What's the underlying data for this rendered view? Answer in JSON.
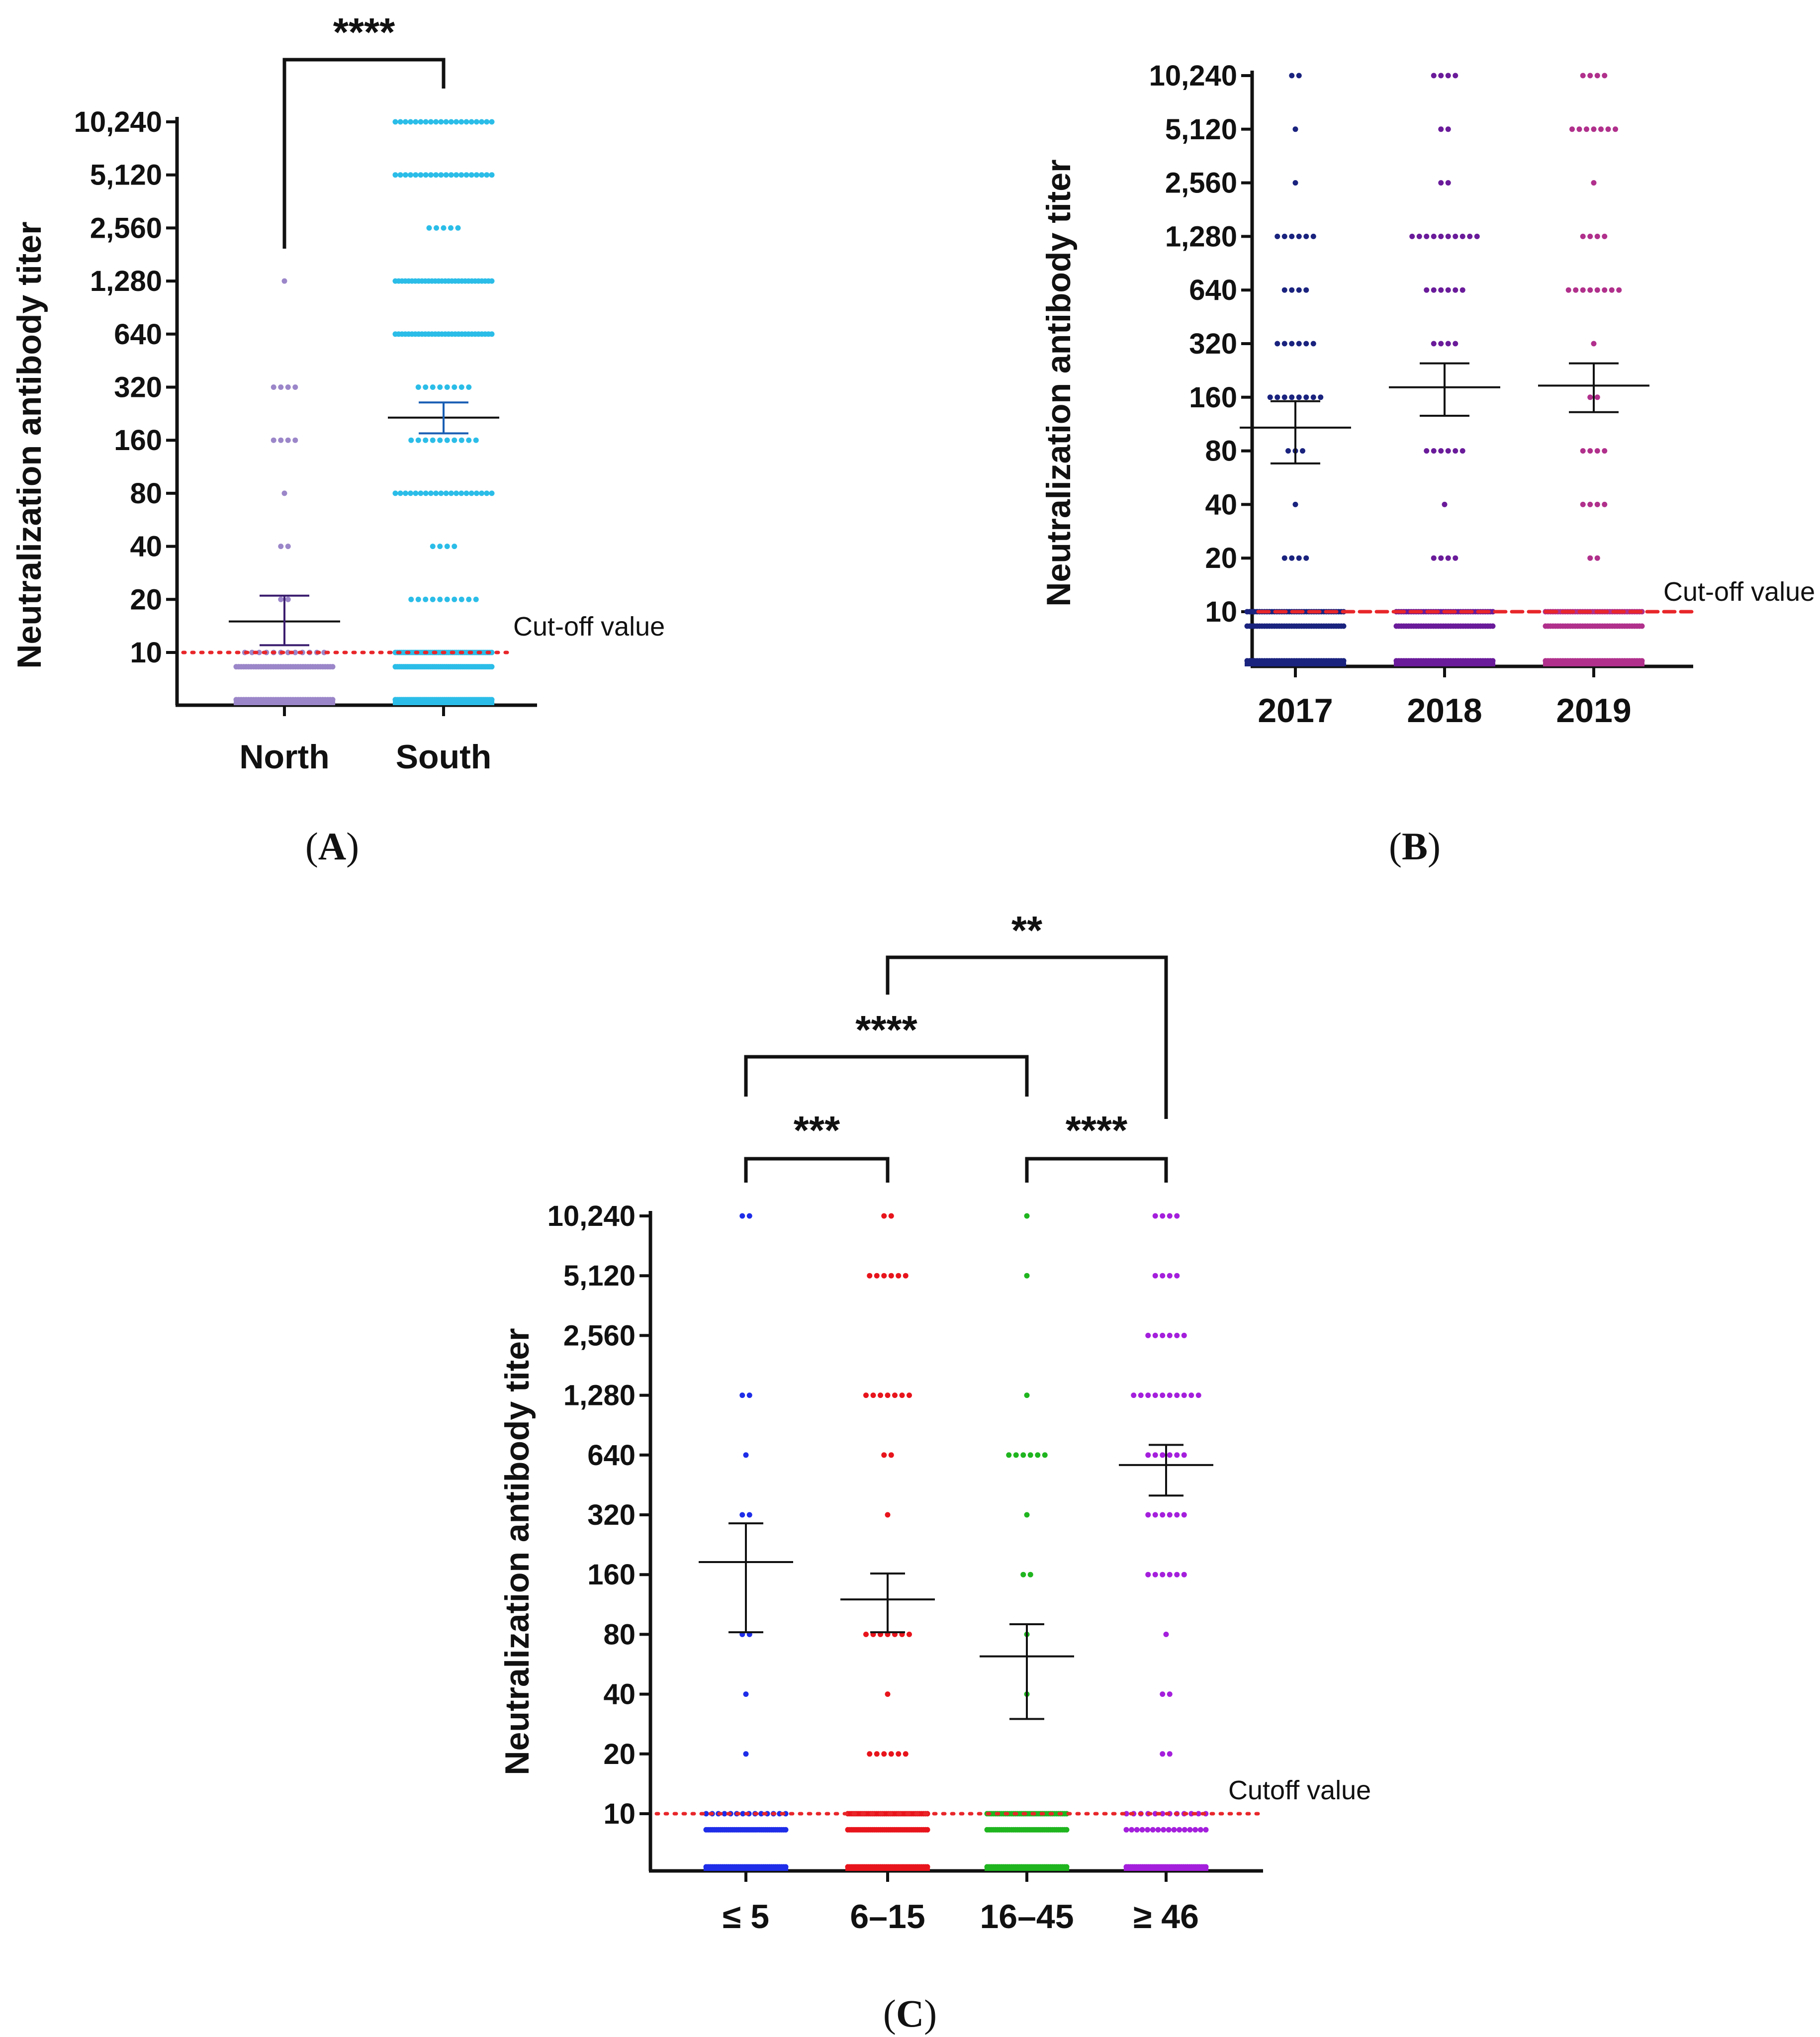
{
  "chart_data": [
    {
      "id": "A",
      "type": "scatter",
      "subtype": "dot-plot with mean ± SEM",
      "panel_label": "A",
      "ylabel": "Neutralization antibody titer",
      "yscale": "log2",
      "yticks": [
        "10",
        "20",
        "40",
        "80",
        "160",
        "320",
        "640",
        "1,280",
        "2,560",
        "5,120",
        "10,240"
      ],
      "ytick_values": [
        10,
        20,
        40,
        80,
        160,
        320,
        640,
        1280,
        2560,
        5120,
        10240
      ],
      "categories": [
        "North",
        "South"
      ],
      "cutoff": {
        "value": 10,
        "label": "Cut-off value",
        "color": "#e8262a",
        "style": "dotted"
      },
      "series": [
        {
          "name": "North",
          "color": "#9b86c9",
          "mean": 15,
          "sem_low": 11,
          "sem_high": 21,
          "points": [
            {
              "y": 1280,
              "n": 1
            },
            {
              "y": 320,
              "n": 4
            },
            {
              "y": 160,
              "n": 4
            },
            {
              "y": 80,
              "n": 1
            },
            {
              "y": 40,
              "n": 2
            },
            {
              "y": 20,
              "n": 2
            },
            {
              "y": 10,
              "n": 12
            },
            {
              "y": 8.3,
              "n": 40
            },
            {
              "y": 5.4,
              "n": 40
            }
          ]
        },
        {
          "name": "South",
          "color": "#2bbde8",
          "mean": 215,
          "sem_low": 175,
          "sem_high": 262,
          "points": [
            {
              "y": 10240,
              "n": 20
            },
            {
              "y": 5120,
              "n": 20
            },
            {
              "y": 2560,
              "n": 5
            },
            {
              "y": 1280,
              "n": 30
            },
            {
              "y": 640,
              "n": 30
            },
            {
              "y": 320,
              "n": 8
            },
            {
              "y": 160,
              "n": 10
            },
            {
              "y": 80,
              "n": 20
            },
            {
              "y": 40,
              "n": 4
            },
            {
              "y": 20,
              "n": 10
            },
            {
              "y": 10,
              "n": 50
            },
            {
              "y": 8.3,
              "n": 50
            },
            {
              "y": 5.4,
              "n": 50
            }
          ]
        }
      ],
      "significance": [
        {
          "from": "North",
          "to": "South",
          "label": "****"
        }
      ]
    },
    {
      "id": "B",
      "type": "scatter",
      "subtype": "dot-plot with mean ± SEM",
      "panel_label": "B",
      "ylabel": "Neutralization antibody titer",
      "yscale": "log2",
      "yticks": [
        "10",
        "20",
        "40",
        "80",
        "160",
        "320",
        "640",
        "1,280",
        "2,560",
        "5,120",
        "10,240"
      ],
      "ytick_values": [
        10,
        20,
        40,
        80,
        160,
        320,
        640,
        1280,
        2560,
        5120,
        10240
      ],
      "categories": [
        "2017",
        "2018",
        "2019"
      ],
      "cutoff": {
        "value": 10,
        "label": "Cut-off value",
        "color": "#e8262a",
        "style": "dashed"
      },
      "series": [
        {
          "name": "2017",
          "color": "#1a237e",
          "mean": 108,
          "sem_low": 68,
          "sem_high": 152,
          "points": [
            {
              "y": 10240,
              "n": 2
            },
            {
              "y": 5120,
              "n": 1
            },
            {
              "y": 2560,
              "n": 1
            },
            {
              "y": 1280,
              "n": 6
            },
            {
              "y": 640,
              "n": 4
            },
            {
              "y": 320,
              "n": 6
            },
            {
              "y": 160,
              "n": 8
            },
            {
              "y": 80,
              "n": 3
            },
            {
              "y": 40,
              "n": 1
            },
            {
              "y": 20,
              "n": 4
            },
            {
              "y": 10,
              "n": 40
            },
            {
              "y": 8.3,
              "n": 40
            },
            {
              "y": 5.3,
              "n": 40
            }
          ]
        },
        {
          "name": "2018",
          "color": "#6a1b9a",
          "mean": 182,
          "sem_low": 126,
          "sem_high": 248,
          "points": [
            {
              "y": 10240,
              "n": 4
            },
            {
              "y": 5120,
              "n": 2
            },
            {
              "y": 2560,
              "n": 2
            },
            {
              "y": 1280,
              "n": 10
            },
            {
              "y": 640,
              "n": 6
            },
            {
              "y": 320,
              "n": 4
            },
            {
              "y": 160,
              "n": 0
            },
            {
              "y": 80,
              "n": 6
            },
            {
              "y": 40,
              "n": 1
            },
            {
              "y": 20,
              "n": 4
            },
            {
              "y": 10,
              "n": 40
            },
            {
              "y": 8.3,
              "n": 40
            },
            {
              "y": 5.3,
              "n": 40
            }
          ]
        },
        {
          "name": "2019",
          "color": "#b0308c",
          "mean": 186,
          "sem_low": 132,
          "sem_high": 248,
          "points": [
            {
              "y": 10240,
              "n": 4
            },
            {
              "y": 5120,
              "n": 7
            },
            {
              "y": 2560,
              "n": 1
            },
            {
              "y": 1280,
              "n": 4
            },
            {
              "y": 640,
              "n": 8
            },
            {
              "y": 320,
              "n": 1
            },
            {
              "y": 160,
              "n": 2
            },
            {
              "y": 80,
              "n": 4
            },
            {
              "y": 40,
              "n": 4
            },
            {
              "y": 20,
              "n": 2
            },
            {
              "y": 10,
              "n": 40
            },
            {
              "y": 8.3,
              "n": 40
            },
            {
              "y": 5.3,
              "n": 40
            }
          ]
        }
      ],
      "significance": []
    },
    {
      "id": "C",
      "type": "scatter",
      "subtype": "dot-plot with mean ± SEM",
      "panel_label": "C",
      "ylabel": "Neutralization antibody titer",
      "yscale": "log2",
      "yticks": [
        "10",
        "20",
        "40",
        "80",
        "160",
        "320",
        "640",
        "1,280",
        "2,560",
        "5,120",
        "10,240"
      ],
      "ytick_values": [
        10,
        20,
        40,
        80,
        160,
        320,
        640,
        1280,
        2560,
        5120,
        10240
      ],
      "categories": [
        "≤ 5",
        "6–15",
        "16–45",
        "≥ 46"
      ],
      "cutoff": {
        "value": 10,
        "label": "Cutoff value",
        "color": "#e8262a",
        "style": "dotted"
      },
      "series": [
        {
          "name": "≤ 5",
          "color": "#1e2de8",
          "mean": 185,
          "sem_low": 82,
          "sem_high": 290,
          "points": [
            {
              "y": 10240,
              "n": 2
            },
            {
              "y": 1280,
              "n": 2
            },
            {
              "y": 640,
              "n": 1
            },
            {
              "y": 320,
              "n": 2
            },
            {
              "y": 80,
              "n": 2
            },
            {
              "y": 40,
              "n": 1
            },
            {
              "y": 20,
              "n": 1
            },
            {
              "y": 10,
              "n": 14
            },
            {
              "y": 8.3,
              "n": 40
            },
            {
              "y": 5.4,
              "n": 40
            }
          ]
        },
        {
          "name": "6–15",
          "color": "#e8141c",
          "mean": 120,
          "sem_low": 82,
          "sem_high": 162,
          "points": [
            {
              "y": 10240,
              "n": 2
            },
            {
              "y": 5120,
              "n": 6
            },
            {
              "y": 1280,
              "n": 7
            },
            {
              "y": 640,
              "n": 2
            },
            {
              "y": 320,
              "n": 1
            },
            {
              "y": 80,
              "n": 7
            },
            {
              "y": 40,
              "n": 1
            },
            {
              "y": 20,
              "n": 6
            },
            {
              "y": 10,
              "n": 40
            },
            {
              "y": 8.3,
              "n": 40
            },
            {
              "y": 5.4,
              "n": 40
            }
          ]
        },
        {
          "name": "16–45",
          "color": "#1fb51f",
          "mean": 62,
          "sem_low": 30,
          "sem_high": 90,
          "points": [
            {
              "y": 10240,
              "n": 1
            },
            {
              "y": 5120,
              "n": 1
            },
            {
              "y": 1280,
              "n": 1
            },
            {
              "y": 640,
              "n": 6
            },
            {
              "y": 320,
              "n": 1
            },
            {
              "y": 160,
              "n": 2
            },
            {
              "y": 80,
              "n": 1
            },
            {
              "y": 40,
              "n": 1
            },
            {
              "y": 10,
              "n": 40
            },
            {
              "y": 8.3,
              "n": 40
            },
            {
              "y": 5.4,
              "n": 40
            }
          ]
        },
        {
          "name": "≥ 46",
          "color": "#a41fdc",
          "mean": 570,
          "sem_low": 400,
          "sem_high": 720,
          "points": [
            {
              "y": 10240,
              "n": 4
            },
            {
              "y": 5120,
              "n": 4
            },
            {
              "y": 2560,
              "n": 6
            },
            {
              "y": 1280,
              "n": 10
            },
            {
              "y": 640,
              "n": 6
            },
            {
              "y": 320,
              "n": 6
            },
            {
              "y": 160,
              "n": 6
            },
            {
              "y": 80,
              "n": 1
            },
            {
              "y": 40,
              "n": 2
            },
            {
              "y": 20,
              "n": 2
            },
            {
              "y": 10,
              "n": 12
            },
            {
              "y": 8.3,
              "n": 16
            },
            {
              "y": 5.4,
              "n": 40
            }
          ]
        }
      ],
      "significance": [
        {
          "from": "≤ 5",
          "to": "6–15",
          "label": "***"
        },
        {
          "from": "16–45",
          "to": "≥ 46",
          "label": "****"
        },
        {
          "from": "≤ 5",
          "to": "16–45",
          "label": "****"
        },
        {
          "from": "6–15",
          "to": "≥ 46",
          "label": "**"
        }
      ]
    }
  ]
}
